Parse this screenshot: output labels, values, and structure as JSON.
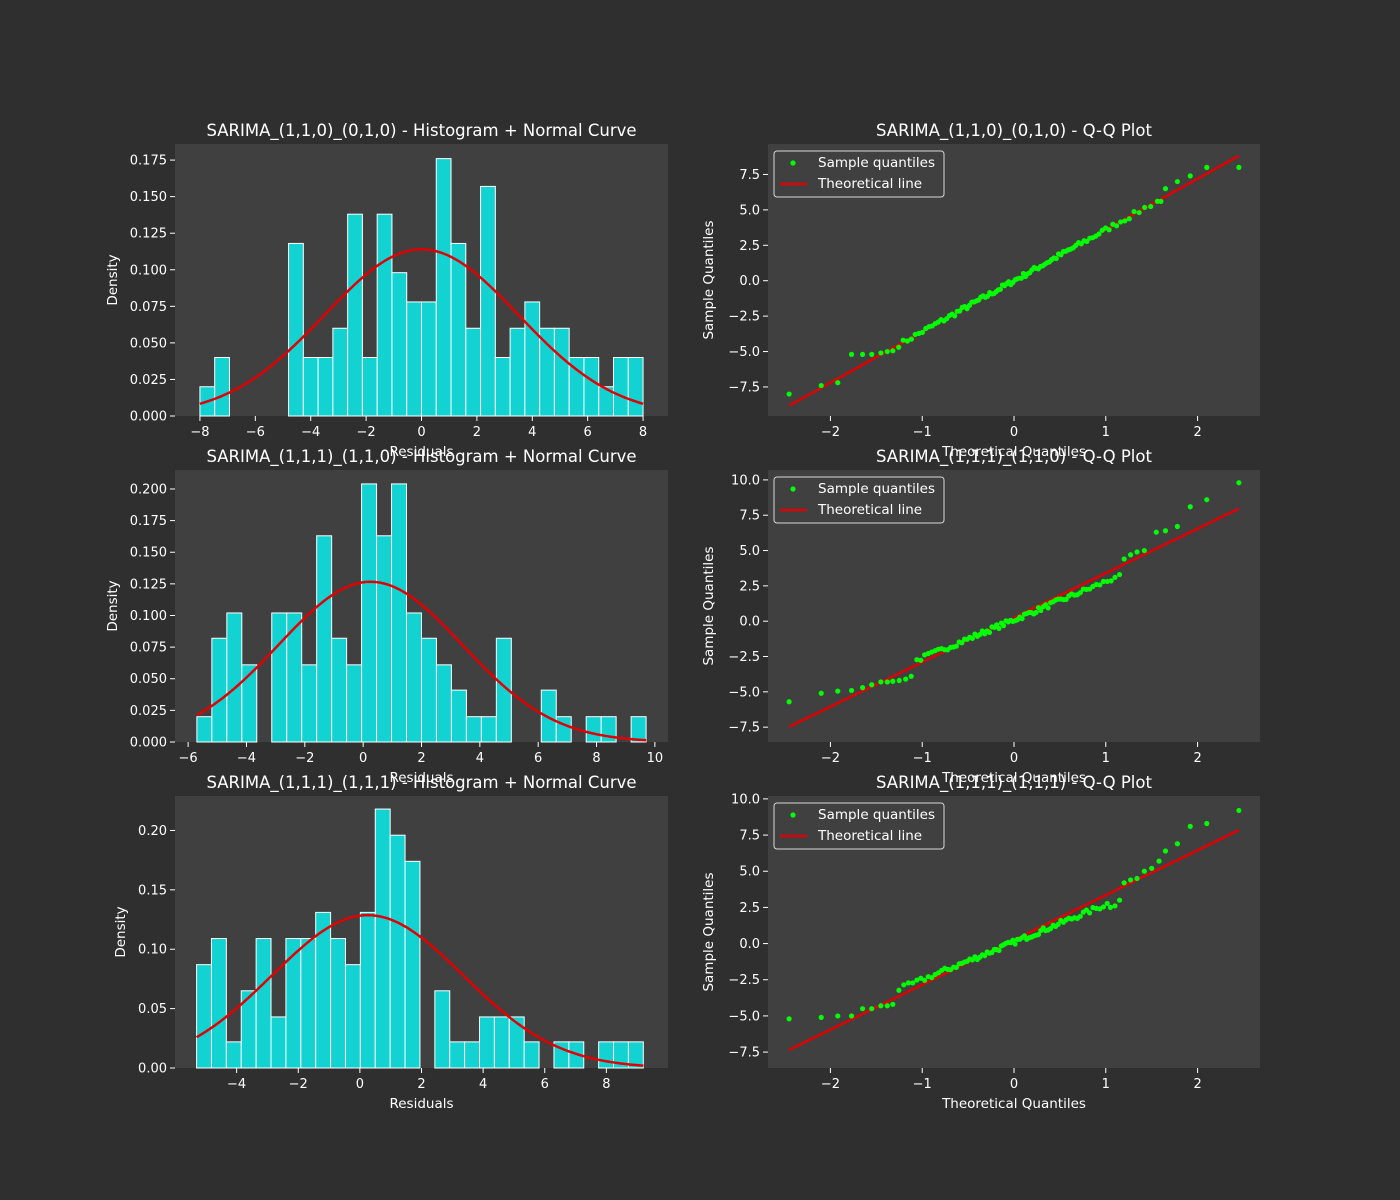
{
  "figure": {
    "background": "#2f2f2f",
    "axes_background": "#404040"
  },
  "colors": {
    "bar": "#13d2d2",
    "bar_edge": "#ffffff",
    "curve": "#e00000",
    "points": "#00ff00",
    "text": "#ffffff"
  },
  "chart_data": [
    {
      "type": "bar",
      "title": "SARIMA_(1,1,0)_(0,1,0) - Histogram + Normal Curve",
      "xlabel": "Residuals",
      "ylabel": "Density",
      "xlim": [
        -8.9,
        8.9
      ],
      "ylim": [
        0,
        0.186
      ],
      "xticks": [
        -8,
        -6,
        -4,
        -2,
        0,
        2,
        4,
        6,
        8
      ],
      "yticks": [
        0.0,
        0.025,
        0.05,
        0.075,
        0.1,
        0.125,
        0.15,
        0.175
      ],
      "ytick_labels": [
        "0.000",
        "0.025",
        "0.050",
        "0.075",
        "0.100",
        "0.125",
        "0.150",
        "0.175"
      ],
      "bin_start": -8.0,
      "bin_width": 0.5333,
      "values": [
        0.02,
        0.04,
        0,
        0,
        0,
        0,
        0.118,
        0.04,
        0.04,
        0.06,
        0.138,
        0.04,
        0.138,
        0.098,
        0.078,
        0.078,
        0.176,
        0.118,
        0.06,
        0.157,
        0.04,
        0.06,
        0.078,
        0.06,
        0.06,
        0.04,
        0.04,
        0.02,
        0.04,
        0.04
      ],
      "normal_curve": {
        "mean": 0.0,
        "std": 3.5,
        "xmin": -8.0,
        "xmax": 8.0
      }
    },
    {
      "type": "scatter",
      "title": "SARIMA_(1,1,0)_(0,1,0) - Q-Q Plot",
      "xlabel": "Theoretical Quantiles",
      "ylabel": "Sample Quantiles",
      "xlim": [
        -2.68,
        2.68
      ],
      "ylim": [
        -9.55,
        9.65
      ],
      "xticks": [
        -2,
        -1,
        0,
        1,
        2
      ],
      "yticks": [
        -7.5,
        -5.0,
        -2.5,
        0.0,
        2.5,
        5.0,
        7.5
      ],
      "ytick_labels": [
        "−7.5",
        "−5.0",
        "−2.5",
        "0.0",
        "2.5",
        "5.0",
        "7.5"
      ],
      "legend": [
        "Sample quantiles",
        "Theoretical line"
      ],
      "legend_position": "upper-left",
      "line": {
        "slope": 3.6,
        "intercept": 0.0,
        "xmin": -2.45,
        "xmax": 2.45
      },
      "points_model": {
        "n": 110,
        "main_slope": 3.6,
        "main_intercept": 0.0
      },
      "tail_points": [
        [
          -2.45,
          -8.0
        ],
        [
          -2.1,
          -7.4
        ],
        [
          -1.92,
          -7.2
        ],
        [
          -1.77,
          -5.2
        ],
        [
          -1.65,
          -5.2
        ],
        [
          -1.55,
          -5.2
        ],
        [
          -1.45,
          -5.1
        ],
        [
          -1.38,
          -5.0
        ],
        [
          -1.32,
          -4.95
        ],
        [
          1.6,
          5.6
        ],
        [
          1.65,
          6.5
        ],
        [
          1.78,
          7.0
        ],
        [
          1.92,
          7.4
        ],
        [
          2.1,
          8.0
        ],
        [
          2.45,
          8.0
        ]
      ]
    },
    {
      "type": "bar",
      "title": "SARIMA_(1,1,1)_(1,1,0) - Histogram + Normal Curve",
      "xlabel": "Residuals",
      "ylabel": "Density",
      "xlim": [
        -6.45,
        10.45
      ],
      "ylim": [
        0,
        0.215
      ],
      "xticks": [
        -6,
        -4,
        -2,
        0,
        2,
        4,
        6,
        8,
        10
      ],
      "yticks": [
        0.0,
        0.025,
        0.05,
        0.075,
        0.1,
        0.125,
        0.15,
        0.175,
        0.2
      ],
      "ytick_labels": [
        "0.000",
        "0.025",
        "0.050",
        "0.075",
        "0.100",
        "0.125",
        "0.150",
        "0.175",
        "0.200"
      ],
      "bin_start": -5.7,
      "bin_width": 0.5133,
      "values": [
        0.02,
        0.082,
        0.102,
        0.061,
        0,
        0.102,
        0.102,
        0.061,
        0.163,
        0.082,
        0.061,
        0.204,
        0.163,
        0.204,
        0.102,
        0.082,
        0.061,
        0.041,
        0.02,
        0.02,
        0.082,
        0,
        0,
        0.041,
        0.02,
        0,
        0.02,
        0.02,
        0,
        0.02
      ],
      "normal_curve": {
        "mean": 0.25,
        "std": 3.15,
        "xmin": -5.7,
        "xmax": 9.7
      }
    },
    {
      "type": "scatter",
      "title": "SARIMA_(1,1,1)_(1,1,0) - Q-Q Plot",
      "xlabel": "Theoretical Quantiles",
      "ylabel": "Sample Quantiles",
      "xlim": [
        -2.68,
        2.68
      ],
      "ylim": [
        -8.55,
        10.7
      ],
      "xticks": [
        -2,
        -1,
        0,
        1,
        2
      ],
      "yticks": [
        -7.5,
        -5.0,
        -2.5,
        0.0,
        2.5,
        5.0,
        7.5,
        10.0
      ],
      "ytick_labels": [
        "−7.5",
        "−5.0",
        "−2.5",
        "0.0",
        "2.5",
        "5.0",
        "7.5",
        "10.0"
      ],
      "legend": [
        "Sample quantiles",
        "Theoretical line"
      ],
      "legend_position": "upper-left",
      "line": {
        "slope": 3.15,
        "intercept": 0.25,
        "xmin": -2.45,
        "xmax": 2.45
      },
      "points_model": {
        "n": 100,
        "main_slope": 2.7,
        "main_intercept": 0.1
      },
      "tail_points": [
        [
          -2.45,
          -5.7
        ],
        [
          -2.1,
          -5.1
        ],
        [
          -1.92,
          -4.95
        ],
        [
          -1.77,
          -4.9
        ],
        [
          -1.65,
          -4.7
        ],
        [
          -1.55,
          -4.5
        ],
        [
          -1.45,
          -4.3
        ],
        [
          -1.38,
          -4.3
        ],
        [
          -1.32,
          -4.25
        ],
        [
          -1.25,
          -4.2
        ],
        [
          -1.18,
          -4.1
        ],
        [
          -1.12,
          -3.9
        ],
        [
          1.1,
          3.1
        ],
        [
          1.15,
          3.3
        ],
        [
          1.2,
          4.4
        ],
        [
          1.27,
          4.7
        ],
        [
          1.34,
          4.9
        ],
        [
          1.42,
          5.0
        ],
        [
          1.55,
          6.3
        ],
        [
          1.65,
          6.4
        ],
        [
          1.78,
          6.7
        ],
        [
          1.92,
          8.1
        ],
        [
          2.1,
          8.6
        ],
        [
          2.45,
          9.8
        ]
      ]
    },
    {
      "type": "bar",
      "title": "SARIMA_(1,1,1)_(1,1,1) - Histogram + Normal Curve",
      "xlabel": "Residuals",
      "ylabel": "Density",
      "xlim": [
        -6.0,
        10.0
      ],
      "ylim": [
        0,
        0.229
      ],
      "xticks": [
        -4,
        -2,
        0,
        2,
        4,
        6,
        8
      ],
      "yticks": [
        0.0,
        0.05,
        0.1,
        0.15,
        0.2
      ],
      "ytick_labels": [
        "0.00",
        "0.05",
        "0.10",
        "0.15",
        "0.20"
      ],
      "bin_start": -5.3,
      "bin_width": 0.4833,
      "values": [
        0.087,
        0.109,
        0.022,
        0.065,
        0.109,
        0.043,
        0.109,
        0.109,
        0.131,
        0.109,
        0.087,
        0.131,
        0.218,
        0.196,
        0.174,
        0,
        0.065,
        0.022,
        0.022,
        0.043,
        0.043,
        0.043,
        0.022,
        0,
        0.022,
        0.022,
        0,
        0.022,
        0.022,
        0.022
      ],
      "normal_curve": {
        "mean": 0.25,
        "std": 3.1,
        "xmin": -5.3,
        "xmax": 9.2
      }
    },
    {
      "type": "scatter",
      "title": "SARIMA_(1,1,1)_(1,1,1) - Q-Q Plot",
      "xlabel": "Theoretical Quantiles",
      "ylabel": "Sample Quantiles",
      "xlim": [
        -2.68,
        2.68
      ],
      "ylim": [
        -8.6,
        10.2
      ],
      "xticks": [
        -2,
        -1,
        0,
        1,
        2
      ],
      "yticks": [
        -7.5,
        -5.0,
        -2.5,
        0.0,
        2.5,
        5.0,
        7.5,
        10.0
      ],
      "ytick_labels": [
        "−7.5",
        "−5.0",
        "−2.5",
        "0.0",
        "2.5",
        "5.0",
        "7.5",
        "10.0"
      ],
      "legend": [
        "Sample quantiles",
        "Theoretical line"
      ],
      "legend_position": "upper-left",
      "line": {
        "slope": 3.1,
        "intercept": 0.25,
        "xmin": -2.45,
        "xmax": 2.45
      },
      "points_model": {
        "n": 100,
        "main_slope": 2.6,
        "main_intercept": 0.1
      },
      "tail_points": [
        [
          -2.45,
          -5.2
        ],
        [
          -2.1,
          -5.1
        ],
        [
          -1.92,
          -5.0
        ],
        [
          -1.77,
          -5.0
        ],
        [
          -1.65,
          -4.5
        ],
        [
          -1.55,
          -4.5
        ],
        [
          -1.45,
          -4.3
        ],
        [
          -1.38,
          -4.3
        ],
        [
          -1.32,
          -4.2
        ],
        [
          1.05,
          2.5
        ],
        [
          1.1,
          2.6
        ],
        [
          1.15,
          3.0
        ],
        [
          1.2,
          4.2
        ],
        [
          1.27,
          4.4
        ],
        [
          1.34,
          4.5
        ],
        [
          1.42,
          5.0
        ],
        [
          1.5,
          5.2
        ],
        [
          1.58,
          5.7
        ],
        [
          1.65,
          6.4
        ],
        [
          1.78,
          6.9
        ],
        [
          1.92,
          8.1
        ],
        [
          2.1,
          8.3
        ],
        [
          2.45,
          9.2
        ]
      ]
    }
  ]
}
